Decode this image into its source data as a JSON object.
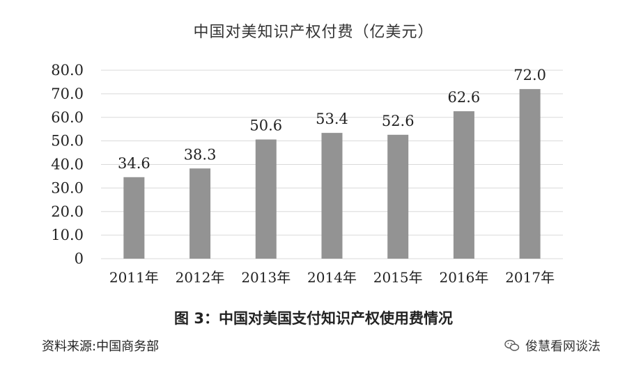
{
  "chart_data": {
    "type": "bar",
    "title": "中国对美知识产权付费（亿美元）",
    "categories": [
      "2011年",
      "2012年",
      "2013年",
      "2014年",
      "2015年",
      "2016年",
      "2017年"
    ],
    "values": [
      34.6,
      38.3,
      50.6,
      53.4,
      52.6,
      62.6,
      72.0
    ],
    "value_labels": [
      "34.6",
      "38.3",
      "50.6",
      "53.4",
      "52.6",
      "62.6",
      "72.0"
    ],
    "ylim": [
      0,
      80
    ],
    "yticks": [
      "0",
      "10.0",
      "20.0",
      "30.0",
      "40.0",
      "50.0",
      "60.0",
      "70.0",
      "80.0"
    ],
    "ytick_values": [
      0,
      10,
      20,
      30,
      40,
      50,
      60,
      70,
      80
    ],
    "grid": true,
    "bar_color": "#939393",
    "grid_color": "#d9d9d9"
  },
  "caption": "图 3：中国对美国支付知识产权使用费情况",
  "source": "资料来源:中国商务部",
  "watermark": "俊慧看网谈法",
  "watermark_icon": "wechat-icon"
}
